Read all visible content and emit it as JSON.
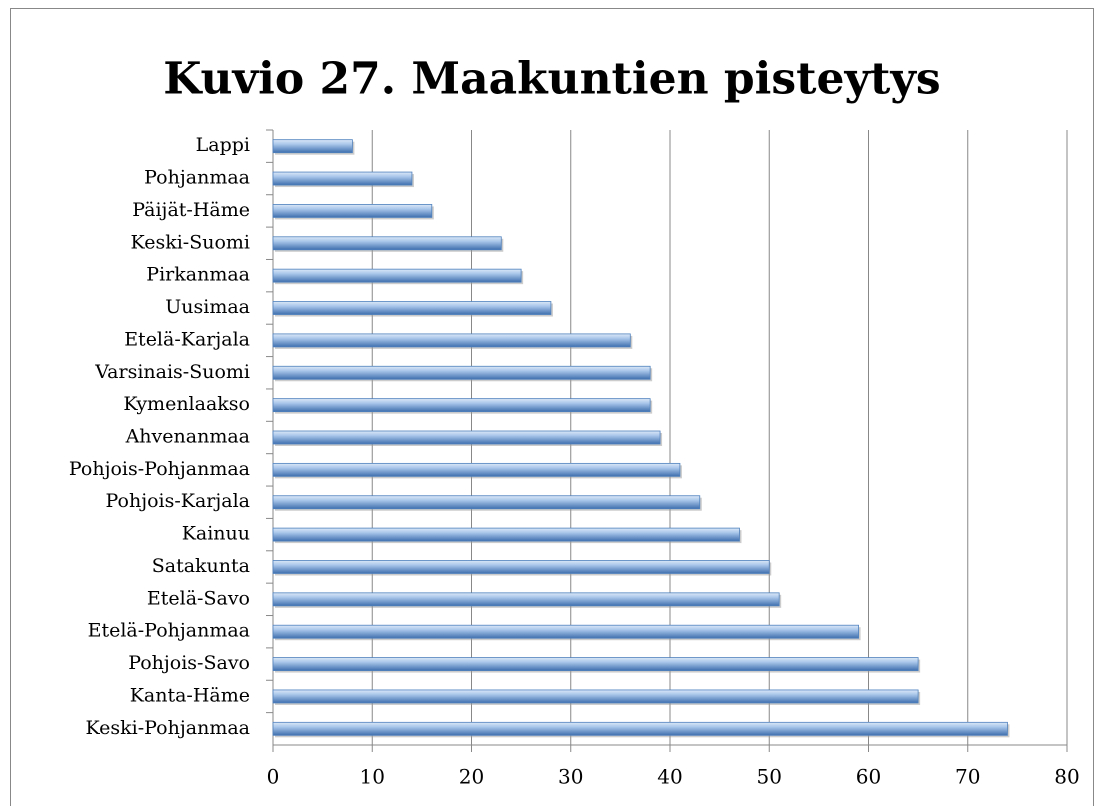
{
  "chart_data": {
    "type": "bar",
    "orientation": "horizontal",
    "title": "Kuvio 27. Maakuntien pisteytys",
    "categories": [
      "Lappi",
      "Pohjanmaa",
      "Päijät-Häme",
      "Keski-Suomi",
      "Pirkanmaa",
      "Uusimaa",
      "Etelä-Karjala",
      "Varsinais-Suomi",
      "Kymenlaakso",
      "Ahvenanmaa",
      "Pohjois-Pohjanmaa",
      "Pohjois-Karjala",
      "Kainuu",
      "Satakunta",
      "Etelä-Savo",
      "Etelä-Pohjanmaa",
      "Pohjois-Savo",
      "Kanta-Häme",
      "Keski-Pohjanmaa"
    ],
    "values": [
      8,
      14,
      16,
      23,
      25,
      28,
      36,
      38,
      38,
      39,
      41,
      43,
      47,
      50,
      51,
      59,
      65,
      65,
      74
    ],
    "color": "#4f81bd",
    "xlim": [
      0,
      80
    ],
    "xticks": [
      0,
      10,
      20,
      30,
      40,
      50,
      60,
      70,
      80
    ],
    "grid": true
  }
}
